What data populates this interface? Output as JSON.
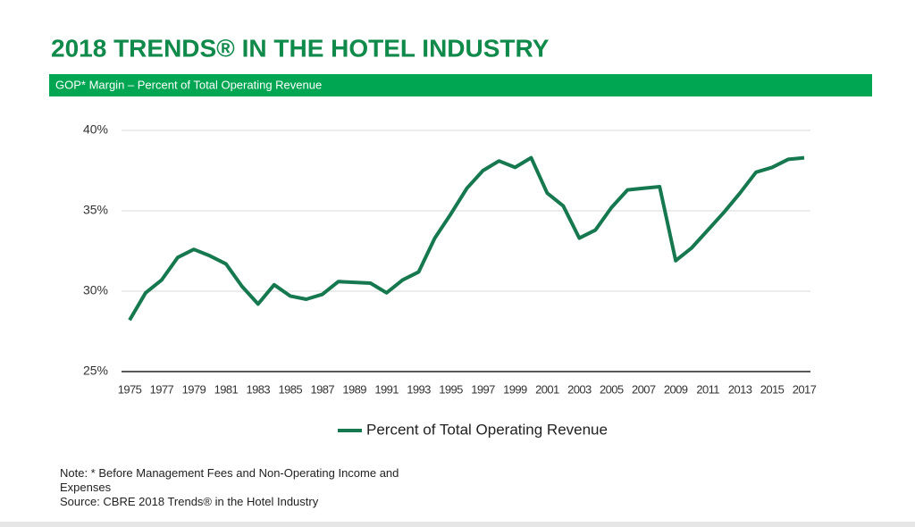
{
  "chart_data": {
    "type": "line",
    "title": "2018 TRENDS® IN THE HOTEL INDUSTRY",
    "subtitle": "GOP* Margin – Percent of Total Operating Revenue",
    "x": [
      1975,
      1976,
      1977,
      1978,
      1979,
      1980,
      1981,
      1982,
      1983,
      1984,
      1985,
      1986,
      1987,
      1988,
      1989,
      1990,
      1991,
      1992,
      1993,
      1994,
      1995,
      1996,
      1997,
      1998,
      1999,
      2000,
      2001,
      2002,
      2003,
      2004,
      2005,
      2006,
      2007,
      2008,
      2009,
      2010,
      2011,
      2012,
      2013,
      2014,
      2015,
      2016,
      2017
    ],
    "xlim": [
      1975,
      2017
    ],
    "xticks": [
      1975,
      1977,
      1979,
      1981,
      1983,
      1985,
      1987,
      1989,
      1991,
      1993,
      1995,
      1997,
      1999,
      2001,
      2003,
      2005,
      2007,
      2009,
      2011,
      2013,
      2015,
      2017
    ],
    "series": [
      {
        "name": "Percent of Total Operating Revenue",
        "color": "#16784f",
        "values": [
          28.2,
          29.9,
          30.7,
          32.1,
          32.6,
          32.2,
          31.7,
          30.3,
          29.2,
          30.4,
          29.7,
          29.5,
          29.8,
          30.6,
          30.55,
          30.5,
          29.9,
          30.7,
          31.2,
          33.3,
          34.8,
          36.4,
          37.5,
          38.1,
          37.7,
          38.3,
          36.1,
          35.3,
          33.3,
          33.8,
          35.2,
          36.3,
          36.4,
          36.5,
          31.9,
          32.7,
          33.8,
          34.9,
          36.1,
          37.4,
          37.7,
          38.2,
          38.3
        ]
      }
    ],
    "ylim": [
      25,
      40
    ],
    "yticks": [
      {
        "value": 25,
        "label": "25%"
      },
      {
        "value": 30,
        "label": "30%"
      },
      {
        "value": 35,
        "label": "35%"
      },
      {
        "value": 40,
        "label": "40%"
      }
    ],
    "grid": true,
    "legend": "bottom",
    "notes": [
      "Note: * Before Management Fees and Non-Operating Income and Expenses",
      "Source: CBRE 2018 Trends® in the Hotel Industry"
    ]
  }
}
